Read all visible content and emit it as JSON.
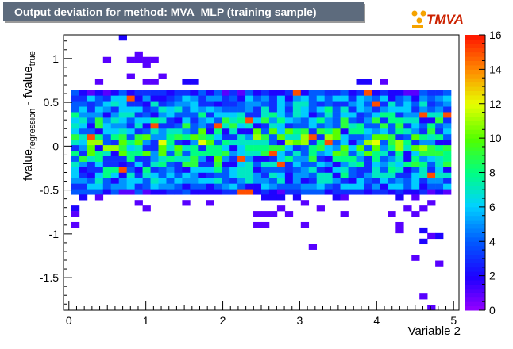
{
  "title": "Output deviation for method: MVA_MLP (training sample)",
  "logo": {
    "text": "TMVA",
    "colors": {
      "primary": "#cc2200",
      "dots": "#f5a300"
    }
  },
  "chart_data": {
    "type": "heatmap",
    "title": "Output deviation for method: MVA_MLP (training sample)",
    "xlabel": "Variable 2",
    "ylabel": "fvalue_regression - fvalue_true",
    "ylabel_parts": {
      "main1": "fvalue",
      "sub1": "regression",
      "sep": " - ",
      "main2": "fvalue",
      "sub2": "true"
    },
    "xlim": [
      -0.07,
      5.07
    ],
    "ylim": [
      -1.87,
      1.27
    ],
    "x_ticks": [
      0,
      1,
      2,
      3,
      4,
      5
    ],
    "x_tick_labels": [
      "0",
      "1",
      "2",
      "3",
      "4",
      "5"
    ],
    "y_ticks": [
      -1.5,
      -1,
      -0.5,
      0,
      0.5,
      1
    ],
    "y_tick_labels": [
      "-1.5",
      "-1",
      "-0.5",
      "0",
      "0.5",
      "1"
    ],
    "z_range": [
      0,
      16
    ],
    "z_ticks": [
      0,
      2,
      4,
      6,
      8,
      10,
      12,
      14,
      16
    ],
    "z_tick_labels": [
      "0",
      "2",
      "4",
      "6",
      "8",
      "10",
      "12",
      "14",
      "16"
    ],
    "bins": {
      "nx": 50,
      "ny": 50
    },
    "core_region": {
      "x": [
        0.0,
        5.0
      ],
      "y": [
        -0.55,
        0.62
      ],
      "typical_count_range": [
        2,
        12
      ],
      "max_count": 15
    },
    "outlier_cells": [
      [
        0.7,
        1.23,
        2
      ],
      [
        0.45,
        1.0,
        1
      ],
      [
        0.8,
        1.0,
        1
      ],
      [
        0.9,
        1.0,
        1
      ],
      [
        1.0,
        1.0,
        1
      ],
      [
        1.1,
        1.0,
        1
      ],
      [
        0.9,
        1.08,
        1
      ],
      [
        1.0,
        0.92,
        1
      ],
      [
        0.8,
        0.8,
        1
      ],
      [
        1.2,
        0.8,
        1
      ],
      [
        1.0,
        0.72,
        1
      ],
      [
        1.15,
        0.72,
        1
      ],
      [
        1.55,
        0.72,
        2
      ],
      [
        1.6,
        0.72,
        2
      ],
      [
        0.35,
        0.72,
        1
      ],
      [
        0.75,
        0.62,
        2
      ],
      [
        0.15,
        0.62,
        1
      ],
      [
        3.75,
        0.72,
        2
      ],
      [
        3.85,
        0.72,
        2
      ],
      [
        4.1,
        0.72,
        1
      ],
      [
        4.3,
        0.62,
        2
      ],
      [
        0.05,
        -0.72,
        2
      ],
      [
        0.05,
        -0.8,
        1
      ],
      [
        0.05,
        -0.9,
        1
      ],
      [
        0.15,
        -0.6,
        2
      ],
      [
        0.35,
        -0.6,
        1
      ],
      [
        0.95,
        -0.65,
        1
      ],
      [
        1.05,
        -0.72,
        1
      ],
      [
        1.55,
        -0.65,
        1
      ],
      [
        1.85,
        -0.65,
        1
      ],
      [
        2.55,
        -0.6,
        2
      ],
      [
        2.65,
        -0.6,
        2
      ],
      [
        2.8,
        -0.6,
        2
      ],
      [
        2.95,
        -0.6,
        2
      ],
      [
        2.75,
        -0.72,
        1
      ],
      [
        3.05,
        -0.65,
        1
      ],
      [
        3.25,
        -0.72,
        1
      ],
      [
        3.5,
        -0.6,
        2
      ],
      [
        3.6,
        -0.6,
        1
      ],
      [
        4.35,
        -0.6,
        2
      ],
      [
        4.55,
        -0.6,
        1
      ],
      [
        4.45,
        -0.72,
        1
      ],
      [
        4.65,
        -0.72,
        1
      ],
      [
        4.75,
        -0.65,
        1
      ],
      [
        2.45,
        -0.78,
        1
      ],
      [
        2.55,
        -0.78,
        1
      ],
      [
        2.65,
        -0.78,
        1
      ],
      [
        2.85,
        -0.78,
        1
      ],
      [
        3.6,
        -0.78,
        1
      ],
      [
        4.2,
        -0.8,
        1
      ],
      [
        4.55,
        -0.78,
        1
      ],
      [
        2.45,
        -0.9,
        1
      ],
      [
        2.6,
        -0.9,
        1
      ],
      [
        3.05,
        -0.9,
        1
      ],
      [
        4.25,
        -0.9,
        1
      ],
      [
        4.25,
        -0.98,
        1
      ],
      [
        4.65,
        -0.95,
        2
      ],
      [
        4.75,
        -1.0,
        1
      ],
      [
        4.85,
        -1.05,
        2
      ],
      [
        4.65,
        -1.1,
        2
      ],
      [
        3.2,
        -1.17,
        1
      ],
      [
        4.55,
        -1.27,
        1
      ],
      [
        4.85,
        -1.35,
        1
      ],
      [
        4.65,
        -1.72,
        1
      ],
      [
        4.75,
        -1.82,
        1
      ]
    ]
  }
}
